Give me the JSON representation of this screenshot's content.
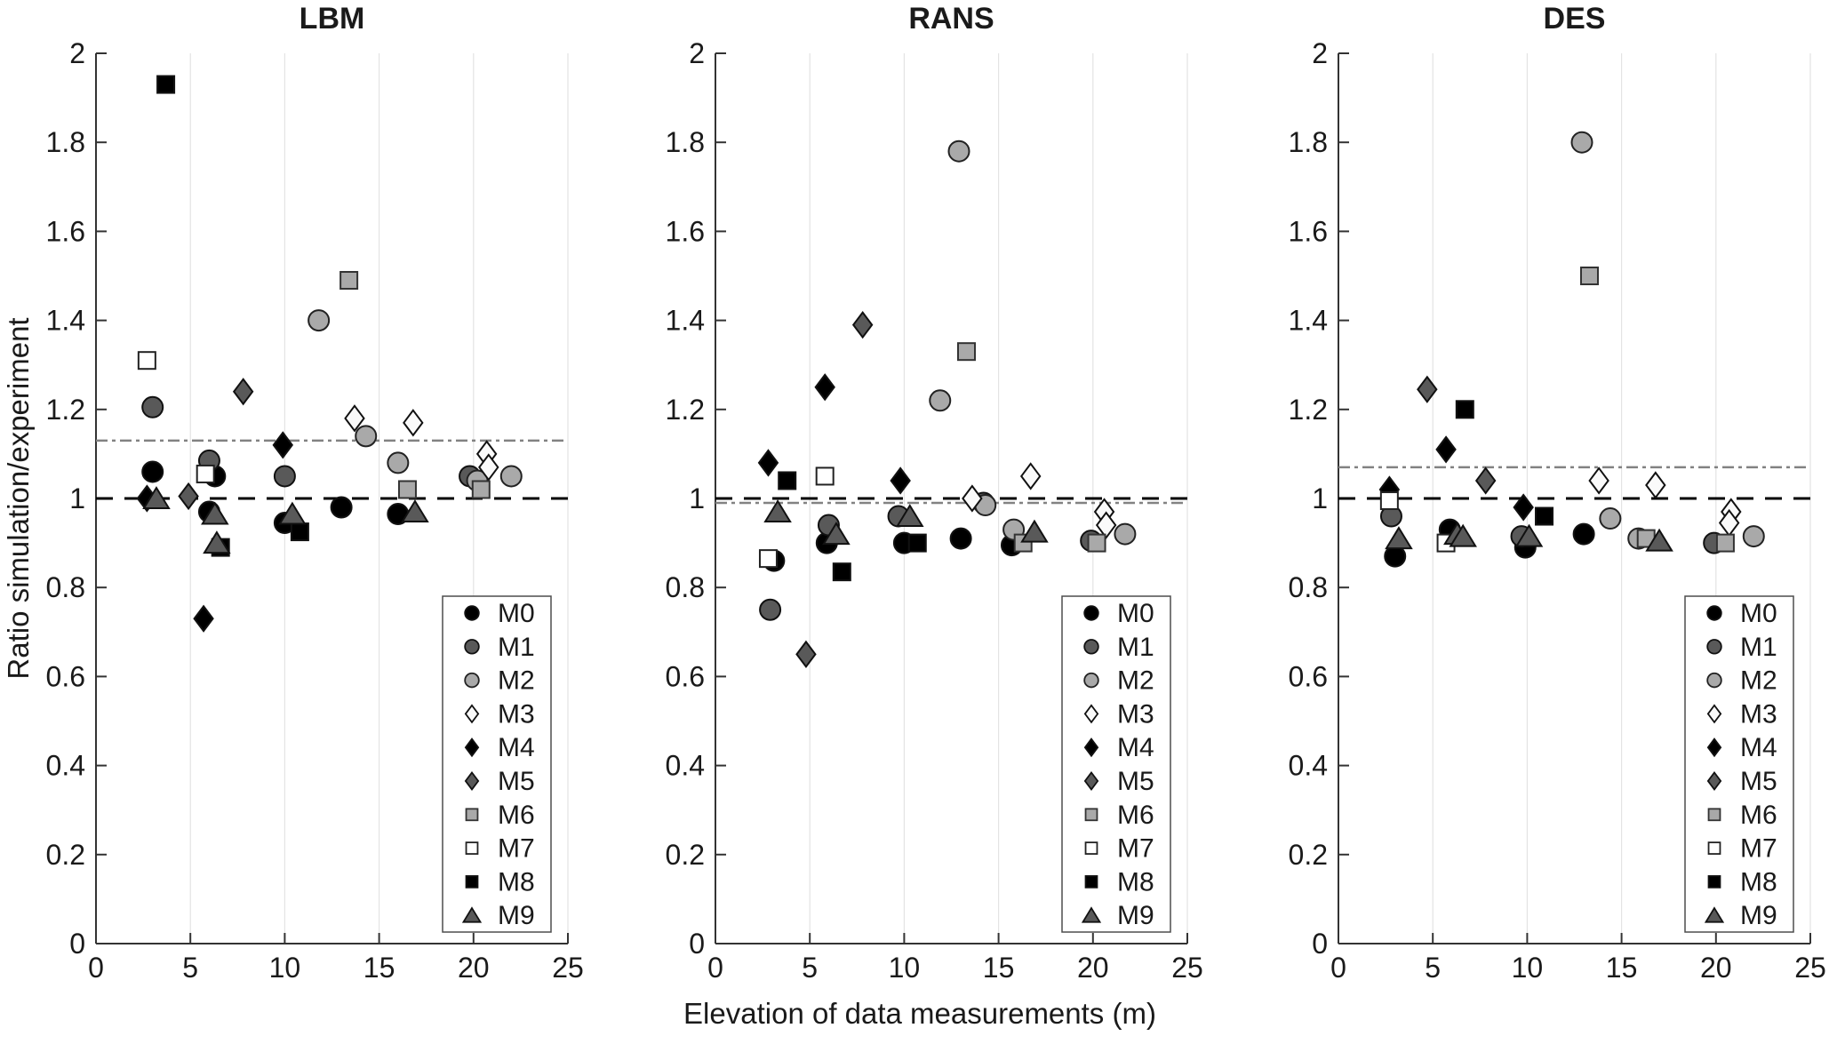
{
  "figure": {
    "xlabel": "Elevation of data measurements (m)",
    "ylabel": "Ratio simulation/experiment",
    "background": "#ffffff",
    "axis_color": "#333333",
    "gridline_color": "#e3e3e3",
    "unity_line_color": "#000000",
    "mean_line_color": "#828282"
  },
  "chart_data": {
    "type": "scatter",
    "title": "",
    "xlabel": "Elevation of data measurements (m)",
    "ylabel": "Ratio simulation/experiment",
    "xlim": [
      0,
      25
    ],
    "ylim": [
      0,
      2
    ],
    "xticks": [
      0,
      5,
      10,
      15,
      20,
      25
    ],
    "ytick_values": [
      0,
      0.2,
      0.4,
      0.6,
      0.8,
      1,
      1.2,
      1.4,
      1.6,
      1.8,
      2
    ],
    "ytick_labels": [
      "0",
      "0.2",
      "0.4",
      "0.6",
      "0.8",
      "1",
      "1.2",
      "1.4",
      "1.6",
      "1.8",
      "2"
    ],
    "grid": "vertical-gridlines-only",
    "legend_position": "lower-right-inside",
    "models": [
      {
        "name": "M0",
        "marker": "circle",
        "fill": "#000000",
        "edge": "#111111"
      },
      {
        "name": "M1",
        "marker": "circle",
        "fill": "#595959",
        "edge": "#111111"
      },
      {
        "name": "M2",
        "marker": "circle",
        "fill": "#a9a9a9",
        "edge": "#222222"
      },
      {
        "name": "M3",
        "marker": "diamond",
        "fill": "#fafafa",
        "edge": "#111111"
      },
      {
        "name": "M4",
        "marker": "diamond",
        "fill": "#000000",
        "edge": "#111111"
      },
      {
        "name": "M5",
        "marker": "diamond",
        "fill": "#595959",
        "edge": "#111111"
      },
      {
        "name": "M6",
        "marker": "square",
        "fill": "#a9a9a9",
        "edge": "#333333"
      },
      {
        "name": "M7",
        "marker": "square",
        "fill": "#ffffff",
        "edge": "#222222"
      },
      {
        "name": "M8",
        "marker": "square",
        "fill": "#000000",
        "edge": "#111111"
      },
      {
        "name": "M9",
        "marker": "triangle",
        "fill": "#595959",
        "edge": "#111111"
      }
    ],
    "reference_lines": {
      "unity": {
        "y": 1.0,
        "style": "dashed",
        "color": "#000000"
      },
      "mean_style": {
        "style": "dash-dot",
        "color": "#828282"
      }
    },
    "subplots": [
      {
        "title": "LBM",
        "mean_line": 1.13,
        "series": {
          "M0": [
            [
              3.0,
              1.06
            ],
            [
              6.3,
              1.05
            ],
            [
              6.0,
              0.97
            ],
            [
              10.0,
              0.945
            ],
            [
              13.0,
              0.98
            ],
            [
              16.0,
              0.965
            ]
          ],
          "M1": [
            [
              3.0,
              1.205
            ],
            [
              6.0,
              1.085
            ],
            [
              10.0,
              1.05
            ],
            [
              19.8,
              1.05
            ]
          ],
          "M2": [
            [
              11.8,
              1.4
            ],
            [
              14.3,
              1.14
            ],
            [
              16.0,
              1.08
            ],
            [
              20.2,
              1.04
            ],
            [
              22.0,
              1.05
            ]
          ],
          "M3": [
            [
              13.7,
              1.18
            ],
            [
              16.8,
              1.17
            ],
            [
              20.7,
              1.1
            ],
            [
              20.8,
              1.07
            ]
          ],
          "M4": [
            [
              2.7,
              1.0
            ],
            [
              5.7,
              0.73
            ],
            [
              9.9,
              1.12
            ]
          ],
          "M5": [
            [
              4.9,
              1.005
            ],
            [
              7.8,
              1.24
            ]
          ],
          "M6": [
            [
              13.4,
              1.49
            ],
            [
              16.5,
              1.02
            ],
            [
              20.4,
              1.02
            ]
          ],
          "M7": [
            [
              2.7,
              1.31
            ],
            [
              5.8,
              1.055
            ]
          ],
          "M8": [
            [
              3.7,
              1.93
            ],
            [
              6.6,
              0.89
            ],
            [
              10.8,
              0.925
            ]
          ],
          "M9": [
            [
              3.2,
              1.0
            ],
            [
              6.3,
              0.965
            ],
            [
              6.4,
              0.9
            ],
            [
              10.4,
              0.965
            ],
            [
              16.9,
              0.97
            ]
          ]
        }
      },
      {
        "title": "RANS",
        "mean_line": 0.99,
        "series": {
          "M0": [
            [
              3.1,
              0.86
            ],
            [
              5.9,
              0.9
            ],
            [
              10.0,
              0.9
            ],
            [
              13.0,
              0.91
            ],
            [
              15.7,
              0.895
            ]
          ],
          "M1": [
            [
              2.9,
              0.75
            ],
            [
              6.0,
              0.94
            ],
            [
              9.7,
              0.96
            ],
            [
              14.2,
              0.99
            ],
            [
              19.9,
              0.905
            ]
          ],
          "M2": [
            [
              11.9,
              1.22
            ],
            [
              12.9,
              1.78
            ],
            [
              14.3,
              0.985
            ],
            [
              15.8,
              0.93
            ],
            [
              21.7,
              0.92
            ]
          ],
          "M3": [
            [
              13.6,
              1.0
            ],
            [
              16.7,
              1.05
            ],
            [
              20.6,
              0.97
            ],
            [
              20.7,
              0.94
            ]
          ],
          "M4": [
            [
              2.8,
              1.08
            ],
            [
              5.8,
              1.25
            ],
            [
              9.8,
              1.04
            ]
          ],
          "M5": [
            [
              4.8,
              0.65
            ],
            [
              7.8,
              1.39
            ]
          ],
          "M6": [
            [
              13.3,
              1.33
            ],
            [
              16.3,
              0.9
            ],
            [
              20.2,
              0.9
            ]
          ],
          "M7": [
            [
              2.8,
              0.865
            ],
            [
              5.8,
              1.05
            ]
          ],
          "M8": [
            [
              3.8,
              1.04
            ],
            [
              6.7,
              0.835
            ],
            [
              10.7,
              0.9
            ]
          ],
          "M9": [
            [
              3.3,
              0.97
            ],
            [
              6.4,
              0.92
            ],
            [
              10.3,
              0.96
            ],
            [
              16.9,
              0.925
            ]
          ]
        }
      },
      {
        "title": "DES",
        "mean_line": 1.07,
        "series": {
          "M0": [
            [
              3.0,
              0.87
            ],
            [
              5.9,
              0.93
            ],
            [
              9.9,
              0.89
            ],
            [
              13.0,
              0.92
            ]
          ],
          "M1": [
            [
              2.8,
              0.96
            ],
            [
              9.7,
              0.915
            ],
            [
              19.9,
              0.9
            ]
          ],
          "M2": [
            [
              12.9,
              1.8
            ],
            [
              14.4,
              0.955
            ],
            [
              15.9,
              0.91
            ],
            [
              22.0,
              0.915
            ]
          ],
          "M3": [
            [
              13.8,
              1.04
            ],
            [
              16.8,
              1.03
            ],
            [
              20.8,
              0.97
            ],
            [
              20.7,
              0.945
            ]
          ],
          "M4": [
            [
              2.7,
              1.02
            ],
            [
              5.7,
              1.11
            ],
            [
              9.8,
              0.98
            ]
          ],
          "M5": [
            [
              4.7,
              1.245
            ],
            [
              7.8,
              1.04
            ]
          ],
          "M6": [
            [
              13.3,
              1.5
            ],
            [
              16.3,
              0.91
            ],
            [
              20.5,
              0.9
            ]
          ],
          "M7": [
            [
              2.7,
              0.995
            ],
            [
              5.7,
              0.9
            ]
          ],
          "M8": [
            [
              6.7,
              1.2
            ],
            [
              10.9,
              0.96
            ]
          ],
          "M9": [
            [
              3.2,
              0.91
            ],
            [
              6.3,
              0.92
            ],
            [
              6.6,
              0.915
            ],
            [
              10.1,
              0.915
            ],
            [
              17.0,
              0.905
            ]
          ]
        }
      }
    ]
  }
}
